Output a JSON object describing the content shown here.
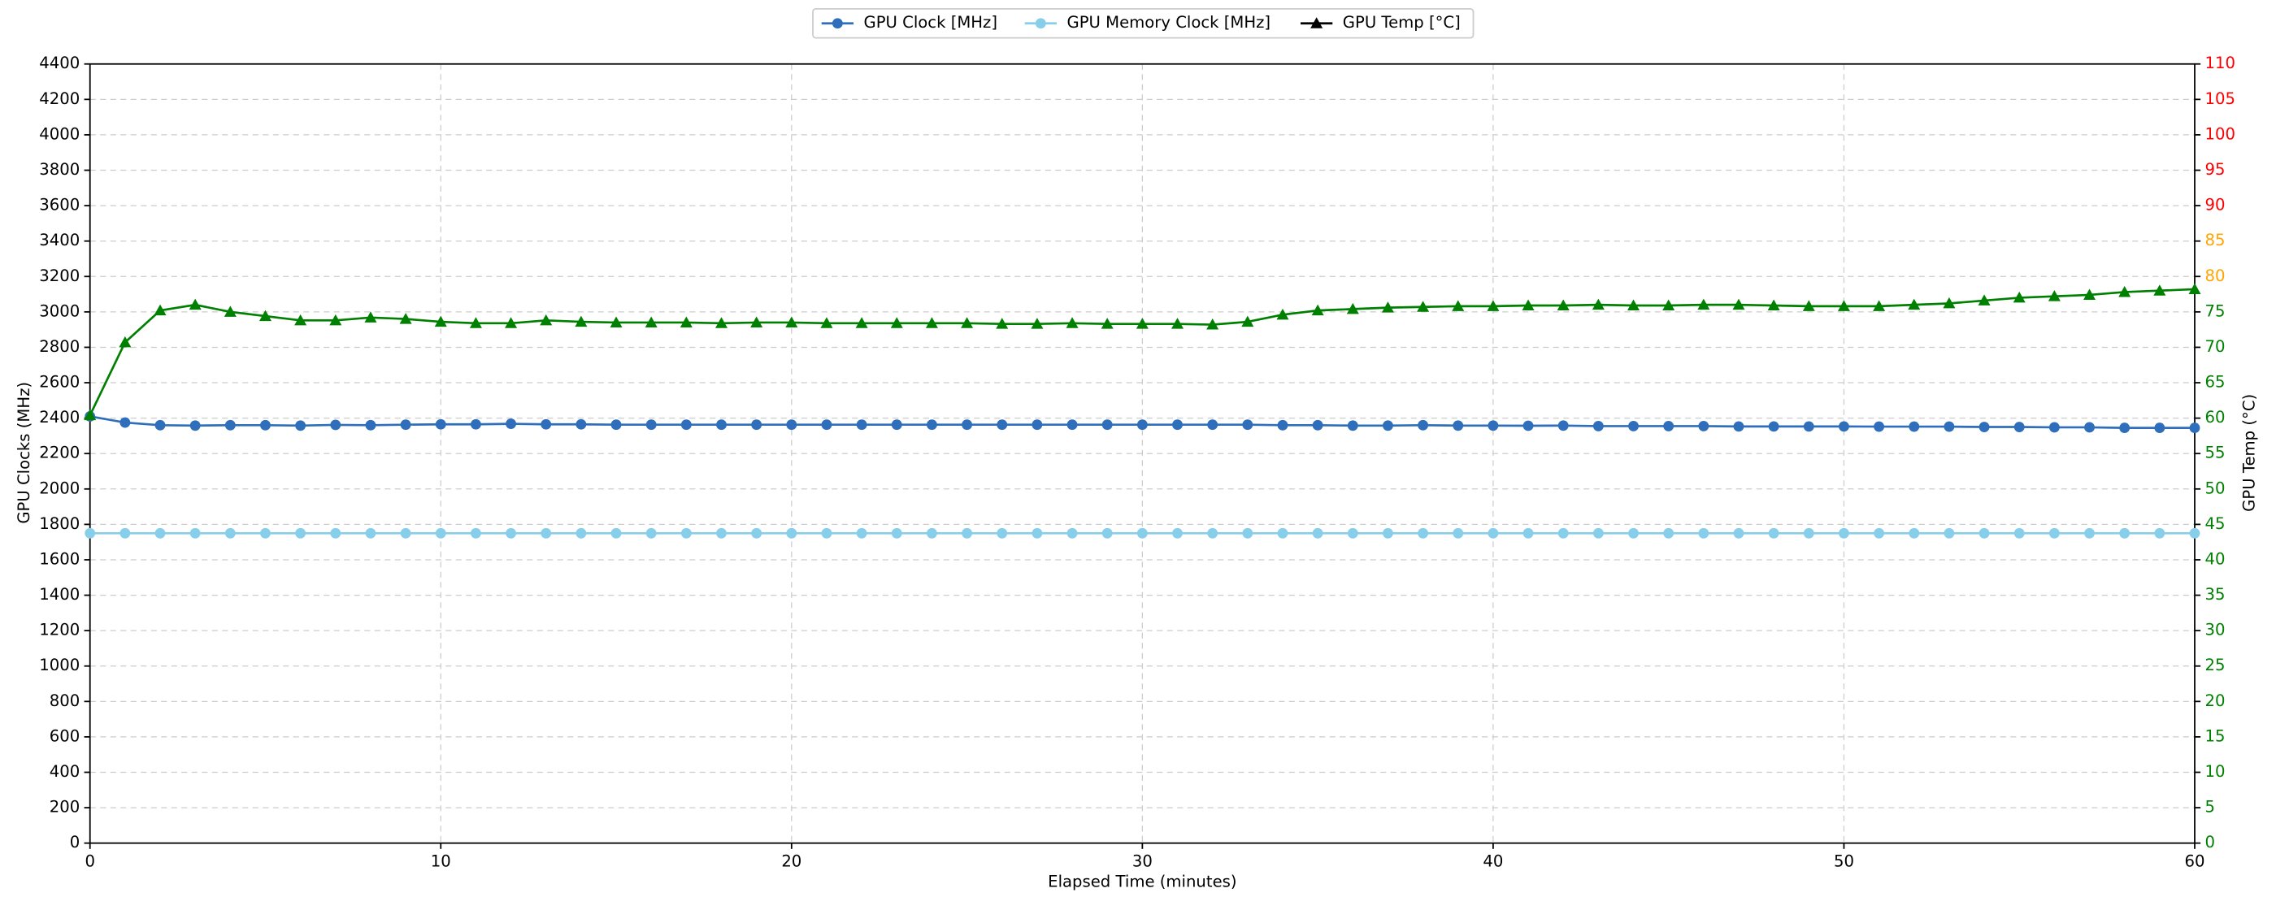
{
  "chart_data": {
    "type": "line",
    "x_label": "Elapsed Time (minutes)",
    "y_label": "GPU Clocks (MHz)",
    "y2_label": "GPU Temp (°C)",
    "x": [
      0,
      1,
      2,
      3,
      4,
      5,
      6,
      7,
      8,
      9,
      10,
      11,
      12,
      13,
      14,
      15,
      16,
      17,
      18,
      19,
      20,
      21,
      22,
      23,
      24,
      25,
      26,
      27,
      28,
      29,
      30,
      31,
      32,
      33,
      34,
      35,
      36,
      37,
      38,
      39,
      40,
      41,
      42,
      43,
      44,
      45,
      46,
      47,
      48,
      49,
      50,
      51,
      52,
      53,
      54,
      55,
      56,
      57,
      58,
      59,
      60
    ],
    "series": [
      {
        "name": "GPU Clock [MHz]",
        "color": "#2f6eba",
        "marker": "circle",
        "values": [
          2410,
          2375,
          2360,
          2358,
          2360,
          2360,
          2358,
          2362,
          2360,
          2363,
          2365,
          2365,
          2368,
          2365,
          2365,
          2363,
          2363,
          2363,
          2363,
          2363,
          2363,
          2363,
          2363,
          2363,
          2363,
          2363,
          2363,
          2363,
          2363,
          2363,
          2363,
          2363,
          2363,
          2363,
          2360,
          2360,
          2358,
          2358,
          2360,
          2358,
          2358,
          2357,
          2358,
          2355,
          2355,
          2355,
          2355,
          2353,
          2353,
          2353,
          2353,
          2352,
          2352,
          2352,
          2350,
          2350,
          2348,
          2348,
          2345,
          2345,
          2345
        ]
      },
      {
        "name": "GPU Memory Clock [MHz]",
        "color": "#87ceeb",
        "marker": "circle",
        "values": [
          1750,
          1750,
          1750,
          1750,
          1750,
          1750,
          1750,
          1750,
          1750,
          1750,
          1750,
          1750,
          1750,
          1750,
          1750,
          1750,
          1750,
          1750,
          1750,
          1750,
          1750,
          1750,
          1750,
          1750,
          1750,
          1750,
          1750,
          1750,
          1750,
          1750,
          1750,
          1750,
          1750,
          1750,
          1750,
          1750,
          1750,
          1750,
          1750,
          1750,
          1750,
          1750,
          1750,
          1750,
          1750,
          1750,
          1750,
          1750,
          1750,
          1750,
          1750,
          1750,
          1750,
          1750,
          1750,
          1750,
          1750,
          1750,
          1750,
          1750,
          1750
        ]
      },
      {
        "name": "GPU Temp [°C]",
        "color": "#008000",
        "legend_color": "#000000",
        "marker": "triangle",
        "axis": "y2",
        "values": [
          60.4,
          70.7,
          75.2,
          76,
          75,
          74.4,
          73.8,
          73.8,
          74.2,
          74,
          73.6,
          73.4,
          73.4,
          73.8,
          73.6,
          73.5,
          73.5,
          73.5,
          73.4,
          73.5,
          73.5,
          73.4,
          73.4,
          73.4,
          73.4,
          73.4,
          73.3,
          73.3,
          73.4,
          73.3,
          73.3,
          73.3,
          73.2,
          73.6,
          74.6,
          75.2,
          75.4,
          75.6,
          75.7,
          75.8,
          75.8,
          75.9,
          75.9,
          76,
          75.9,
          75.9,
          76,
          76,
          75.9,
          75.8,
          75.8,
          75.8,
          76,
          76.2,
          76.6,
          77,
          77.2,
          77.4,
          77.8,
          78,
          78.2
        ]
      }
    ],
    "xlim": [
      0,
      60
    ],
    "xticks": [
      0,
      10,
      20,
      30,
      40,
      50,
      60
    ],
    "ylim": [
      0,
      4400
    ],
    "yticks": [
      0,
      200,
      400,
      600,
      800,
      1000,
      1200,
      1400,
      1600,
      1800,
      2000,
      2200,
      2400,
      2600,
      2800,
      3000,
      3200,
      3400,
      3600,
      3800,
      4000,
      4200,
      4400
    ],
    "y2lim": [
      0,
      110
    ],
    "y2ticks": [
      0,
      5,
      10,
      15,
      20,
      25,
      30,
      35,
      40,
      45,
      50,
      55,
      60,
      65,
      70,
      75,
      80,
      85,
      90,
      95,
      100,
      105,
      110
    ],
    "y2tick_colors": [
      "#008000",
      "#008000",
      "#008000",
      "#008000",
      "#008000",
      "#008000",
      "#008000",
      "#008000",
      "#008000",
      "#008000",
      "#008000",
      "#008000",
      "#008000",
      "#008000",
      "#008000",
      "#008000",
      "#ffa500",
      "#ffa500",
      "#ff0000",
      "#ff0000",
      "#ff0000",
      "#ff0000",
      "#ff0000"
    ],
    "grid": true,
    "legend_position": "top"
  }
}
